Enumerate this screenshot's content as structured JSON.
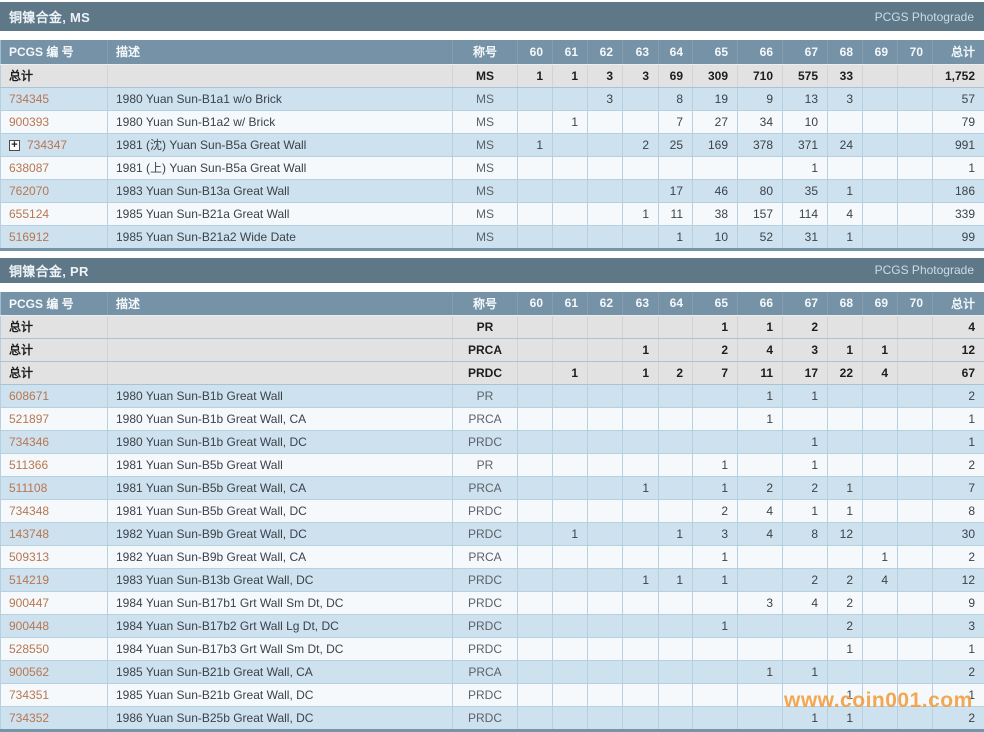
{
  "photograde_label": "PCGS Photograde",
  "watermark": "www.coin001.com",
  "colors": {
    "pcgs_link": "#b9764f",
    "watermark": "#f29935",
    "section_bar": "#5e7888",
    "table_header": "#7592a6"
  },
  "columns": {
    "pcgs": "PCGS 编 号",
    "description": "描述",
    "designation": "称号",
    "grades": [
      "60",
      "61",
      "62",
      "63",
      "64",
      "65",
      "66",
      "67",
      "68",
      "69",
      "70"
    ],
    "total": "总计"
  },
  "totals_label": "总计",
  "sections": [
    {
      "title": "铜镍合金, MS",
      "totals": [
        {
          "designation": "MS",
          "grades": [
            "1",
            "1",
            "3",
            "3",
            "69",
            "309",
            "710",
            "575",
            "33",
            "",
            ""
          ],
          "total": "1,752"
        }
      ],
      "rows": [
        {
          "pcgs_number": "734345",
          "expandable": false,
          "description": "1980 Yuan Sun-B1a1 w/o Brick",
          "designation": "MS",
          "grades": [
            "",
            "",
            "3",
            "",
            "8",
            "19",
            "9",
            "13",
            "3",
            "",
            ""
          ],
          "total": "57"
        },
        {
          "pcgs_number": "900393",
          "expandable": false,
          "description": "1980 Yuan Sun-B1a2 w/ Brick",
          "designation": "MS",
          "grades": [
            "",
            "1",
            "",
            "",
            "7",
            "27",
            "34",
            "10",
            "",
            "",
            ""
          ],
          "total": "79"
        },
        {
          "pcgs_number": "734347",
          "expandable": true,
          "description": "1981 (沈) Yuan Sun-B5a Great Wall",
          "designation": "MS",
          "grades": [
            "1",
            "",
            "",
            "2",
            "25",
            "169",
            "378",
            "371",
            "24",
            "",
            ""
          ],
          "total": "991"
        },
        {
          "pcgs_number": "638087",
          "expandable": false,
          "description": "1981 (上) Yuan Sun-B5a Great Wall",
          "designation": "MS",
          "grades": [
            "",
            "",
            "",
            "",
            "",
            "",
            "",
            "1",
            "",
            "",
            ""
          ],
          "total": "1"
        },
        {
          "pcgs_number": "762070",
          "expandable": false,
          "description": "1983 Yuan Sun-B13a Great Wall",
          "designation": "MS",
          "grades": [
            "",
            "",
            "",
            "",
            "17",
            "46",
            "80",
            "35",
            "1",
            "",
            ""
          ],
          "total": "186"
        },
        {
          "pcgs_number": "655124",
          "expandable": false,
          "description": "1985 Yuan Sun-B21a Great Wall",
          "designation": "MS",
          "grades": [
            "",
            "",
            "",
            "1",
            "11",
            "38",
            "157",
            "114",
            "4",
            "",
            ""
          ],
          "total": "339"
        },
        {
          "pcgs_number": "516912",
          "expandable": false,
          "description": "1985 Yuan Sun-B21a2 Wide Date",
          "designation": "MS",
          "grades": [
            "",
            "",
            "",
            "",
            "1",
            "10",
            "52",
            "31",
            "1",
            "",
            ""
          ],
          "total": "99"
        }
      ]
    },
    {
      "title": "铜镍合金, PR",
      "totals": [
        {
          "designation": "PR",
          "grades": [
            "",
            "",
            "",
            "",
            "",
            "1",
            "1",
            "2",
            "",
            "",
            ""
          ],
          "total": "4"
        },
        {
          "designation": "PRCA",
          "grades": [
            "",
            "",
            "",
            "1",
            "",
            "2",
            "4",
            "3",
            "1",
            "1",
            ""
          ],
          "total": "12"
        },
        {
          "designation": "PRDC",
          "grades": [
            "",
            "1",
            "",
            "1",
            "2",
            "7",
            "11",
            "17",
            "22",
            "4",
            ""
          ],
          "total": "67"
        }
      ],
      "rows": [
        {
          "pcgs_number": "608671",
          "expandable": false,
          "description": "1980 Yuan Sun-B1b Great Wall",
          "designation": "PR",
          "grades": [
            "",
            "",
            "",
            "",
            "",
            "",
            "1",
            "1",
            "",
            "",
            ""
          ],
          "total": "2"
        },
        {
          "pcgs_number": "521897",
          "expandable": false,
          "description": "1980 Yuan Sun-B1b Great Wall, CA",
          "designation": "PRCA",
          "grades": [
            "",
            "",
            "",
            "",
            "",
            "",
            "1",
            "",
            "",
            "",
            ""
          ],
          "total": "1"
        },
        {
          "pcgs_number": "734346",
          "expandable": false,
          "description": "1980 Yuan Sun-B1b Great Wall, DC",
          "designation": "PRDC",
          "grades": [
            "",
            "",
            "",
            "",
            "",
            "",
            "",
            "1",
            "",
            "",
            ""
          ],
          "total": "1"
        },
        {
          "pcgs_number": "511366",
          "expandable": false,
          "description": "1981 Yuan Sun-B5b Great Wall",
          "designation": "PR",
          "grades": [
            "",
            "",
            "",
            "",
            "",
            "1",
            "",
            "1",
            "",
            "",
            ""
          ],
          "total": "2"
        },
        {
          "pcgs_number": "511108",
          "expandable": false,
          "description": "1981 Yuan Sun-B5b Great Wall, CA",
          "designation": "PRCA",
          "grades": [
            "",
            "",
            "",
            "1",
            "",
            "1",
            "2",
            "2",
            "1",
            "",
            ""
          ],
          "total": "7"
        },
        {
          "pcgs_number": "734348",
          "expandable": false,
          "description": "1981 Yuan Sun-B5b Great Wall, DC",
          "designation": "PRDC",
          "grades": [
            "",
            "",
            "",
            "",
            "",
            "2",
            "4",
            "1",
            "1",
            "",
            ""
          ],
          "total": "8"
        },
        {
          "pcgs_number": "143748",
          "expandable": false,
          "description": "1982 Yuan Sun-B9b Great Wall, DC",
          "designation": "PRDC",
          "grades": [
            "",
            "1",
            "",
            "",
            "1",
            "3",
            "4",
            "8",
            "12",
            "",
            ""
          ],
          "total": "30"
        },
        {
          "pcgs_number": "509313",
          "expandable": false,
          "description": "1982 Yuan Sun-B9b Great Wall, CA",
          "designation": "PRCA",
          "grades": [
            "",
            "",
            "",
            "",
            "",
            "1",
            "",
            "",
            "",
            "1",
            ""
          ],
          "total": "2"
        },
        {
          "pcgs_number": "514219",
          "expandable": false,
          "description": "1983 Yuan Sun-B13b Great Wall, DC",
          "designation": "PRDC",
          "grades": [
            "",
            "",
            "",
            "1",
            "1",
            "1",
            "",
            "2",
            "2",
            "4",
            ""
          ],
          "total": "12"
        },
        {
          "pcgs_number": "900447",
          "expandable": false,
          "description": "1984 Yuan Sun-B17b1 Grt Wall Sm Dt, DC",
          "designation": "PRDC",
          "grades": [
            "",
            "",
            "",
            "",
            "",
            "",
            "3",
            "4",
            "2",
            "",
            ""
          ],
          "total": "9"
        },
        {
          "pcgs_number": "900448",
          "expandable": false,
          "description": "1984 Yuan Sun-B17b2 Grt Wall Lg Dt, DC",
          "designation": "PRDC",
          "grades": [
            "",
            "",
            "",
            "",
            "",
            "1",
            "",
            "",
            "2",
            "",
            ""
          ],
          "total": "3"
        },
        {
          "pcgs_number": "528550",
          "expandable": false,
          "description": "1984 Yuan Sun-B17b3 Grt Wall Sm Dt, DC",
          "designation": "PRDC",
          "grades": [
            "",
            "",
            "",
            "",
            "",
            "",
            "",
            "",
            "1",
            "",
            ""
          ],
          "total": "1"
        },
        {
          "pcgs_number": "900562",
          "expandable": false,
          "description": "1985 Yuan Sun-B21b Great Wall, CA",
          "designation": "PRCA",
          "grades": [
            "",
            "",
            "",
            "",
            "",
            "",
            "1",
            "1",
            "",
            "",
            ""
          ],
          "total": "2"
        },
        {
          "pcgs_number": "734351",
          "expandable": false,
          "description": "1985 Yuan Sun-B21b Great Wall, DC",
          "designation": "PRDC",
          "grades": [
            "",
            "",
            "",
            "",
            "",
            "",
            "",
            "",
            "1",
            "",
            ""
          ],
          "total": "1"
        },
        {
          "pcgs_number": "734352",
          "expandable": false,
          "description": "1986 Yuan Sun-B25b Great Wall, DC",
          "designation": "PRDC",
          "grades": [
            "",
            "",
            "",
            "",
            "",
            "",
            "",
            "1",
            "1",
            "",
            ""
          ],
          "total": "2"
        }
      ]
    }
  ]
}
